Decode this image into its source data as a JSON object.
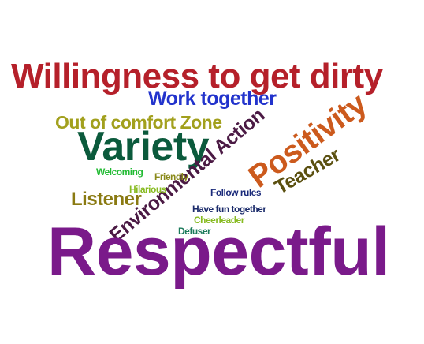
{
  "words": [
    {
      "id": "willingness",
      "text": "Willingness to get dirty",
      "color": "#b5202a"
    },
    {
      "id": "work-together",
      "text": "Work together",
      "color": "#2233cc"
    },
    {
      "id": "out-of-comfort",
      "text": "Out of comfort Zone",
      "color": "#a2a01d"
    },
    {
      "id": "variety",
      "text": "Variety",
      "color": "#0b5a3c"
    },
    {
      "id": "environmental-action",
      "text": "Environmental Action",
      "color": "#4b1a44"
    },
    {
      "id": "positivity",
      "text": "Positivity",
      "color": "#cc5a1d"
    },
    {
      "id": "teacher",
      "text": "Teacher",
      "color": "#5b5010"
    },
    {
      "id": "welcoming",
      "text": "Welcoming",
      "color": "#22bb33"
    },
    {
      "id": "friendly",
      "text": "Friendly",
      "color": "#8a8a1a"
    },
    {
      "id": "hilarious",
      "text": "Hilarious",
      "color": "#88bb22"
    },
    {
      "id": "listener",
      "text": "Listener",
      "color": "#8a7a12"
    },
    {
      "id": "follow-rules",
      "text": "Follow rules",
      "color": "#1a2a7a"
    },
    {
      "id": "have-fun",
      "text": "Have fun together",
      "color": "#1a2a6a"
    },
    {
      "id": "cheerleader",
      "text": "Cheerleader",
      "color": "#88bb22"
    },
    {
      "id": "defuser",
      "text": "Defuser",
      "color": "#1a7a5a"
    },
    {
      "id": "respectful",
      "text": "Respectful",
      "color": "#7a1a8a"
    }
  ]
}
